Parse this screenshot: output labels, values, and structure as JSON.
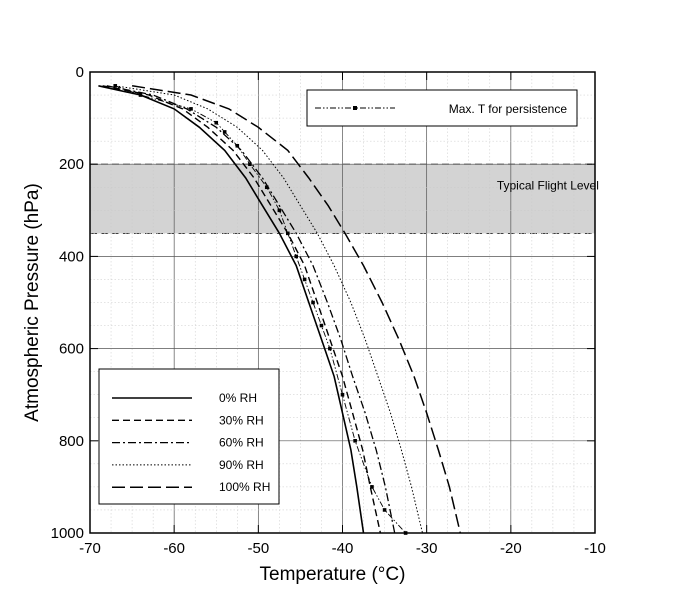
{
  "chart_data": {
    "type": "line",
    "xlabel": "Temperature (°C)",
    "ylabel": "Atmospheric Pressure (hPa)",
    "xlim": [
      -70,
      -10
    ],
    "ylim": [
      0,
      1000
    ],
    "y_inverted": true,
    "xticks": [
      -70,
      -60,
      -50,
      -40,
      -30,
      -20,
      -10
    ],
    "xtick_labels": [
      "-70",
      "-60",
      "-50",
      "-40",
      "-30",
      "-20",
      "-10"
    ],
    "yticks": [
      0,
      200,
      400,
      600,
      800,
      1000
    ],
    "ytick_labels": [
      "0",
      "200",
      "400",
      "600",
      "800",
      "1000"
    ],
    "grid": true,
    "band": {
      "label": "Typical Flight Level",
      "y_range": [
        200,
        350
      ],
      "color": "#d3d3d3"
    },
    "series": [
      {
        "name": "0% RH",
        "dash": "solid",
        "x": [
          -69.0,
          -64.0,
          -60.0,
          -57.0,
          -54.0,
          -51.5,
          -49.5,
          -47.5,
          -45.5,
          -44.0,
          -42.5,
          -41.0,
          -40.0,
          -39.0,
          -38.3,
          -37.5
        ],
        "y": [
          30,
          50,
          80,
          120,
          170,
          230,
          290,
          350,
          420,
          500,
          580,
          660,
          740,
          820,
          900,
          1000
        ]
      },
      {
        "name": "30% RH",
        "dash": "dashed",
        "x": [
          -68.5,
          -63.0,
          -59.0,
          -56.0,
          -53.0,
          -50.5,
          -48.5,
          -46.5,
          -44.5,
          -43.0,
          -41.5,
          -40.0,
          -38.8,
          -37.6,
          -36.7,
          -35.5
        ],
        "y": [
          30,
          50,
          80,
          120,
          170,
          230,
          290,
          350,
          420,
          500,
          580,
          660,
          740,
          820,
          900,
          1000
        ]
      },
      {
        "name": "60% RH",
        "dash": "dash-dot",
        "x": [
          -68.0,
          -62.5,
          -58.5,
          -55.0,
          -52.0,
          -49.5,
          -47.5,
          -45.5,
          -43.5,
          -41.8,
          -40.2,
          -38.8,
          -37.3,
          -36.0,
          -34.9,
          -33.8
        ],
        "y": [
          30,
          50,
          80,
          120,
          170,
          230,
          290,
          350,
          420,
          500,
          580,
          660,
          740,
          820,
          900,
          1000
        ]
      },
      {
        "name": "90% RH",
        "dash": "dotted",
        "x": [
          -67.0,
          -60.0,
          -56.0,
          -52.5,
          -49.5,
          -47.0,
          -45.0,
          -43.0,
          -41.0,
          -39.0,
          -37.3,
          -35.8,
          -34.3,
          -33.0,
          -31.8,
          -30.5
        ],
        "y": [
          30,
          50,
          80,
          120,
          170,
          230,
          290,
          350,
          420,
          500,
          580,
          660,
          740,
          820,
          900,
          1000
        ]
      },
      {
        "name": "100% RH",
        "dash": "long-dash",
        "x": [
          -65.0,
          -58.0,
          -53.5,
          -50.0,
          -46.5,
          -44.0,
          -41.7,
          -39.7,
          -37.5,
          -35.3,
          -33.3,
          -31.5,
          -30.0,
          -28.6,
          -27.3,
          -26.0
        ],
        "y": [
          30,
          50,
          80,
          120,
          170,
          230,
          290,
          350,
          420,
          500,
          580,
          660,
          740,
          820,
          900,
          1000
        ]
      },
      {
        "name": "Max. T for persistence",
        "dash": "dash-dot-dot",
        "markers": true,
        "x": [
          -67.0,
          -64.0,
          -58.0,
          -55.0,
          -54.0,
          -52.5,
          -51.0,
          -49.0,
          -47.5,
          -46.5,
          -45.5,
          -44.5,
          -43.5,
          -42.5,
          -41.5,
          -40.0,
          -38.5,
          -36.5,
          -35.0,
          -32.5
        ],
        "y": [
          30,
          50,
          80,
          110,
          130,
          160,
          200,
          250,
          300,
          350,
          400,
          450,
          500,
          550,
          600,
          700,
          800,
          900,
          950,
          1000
        ]
      }
    ]
  }
}
